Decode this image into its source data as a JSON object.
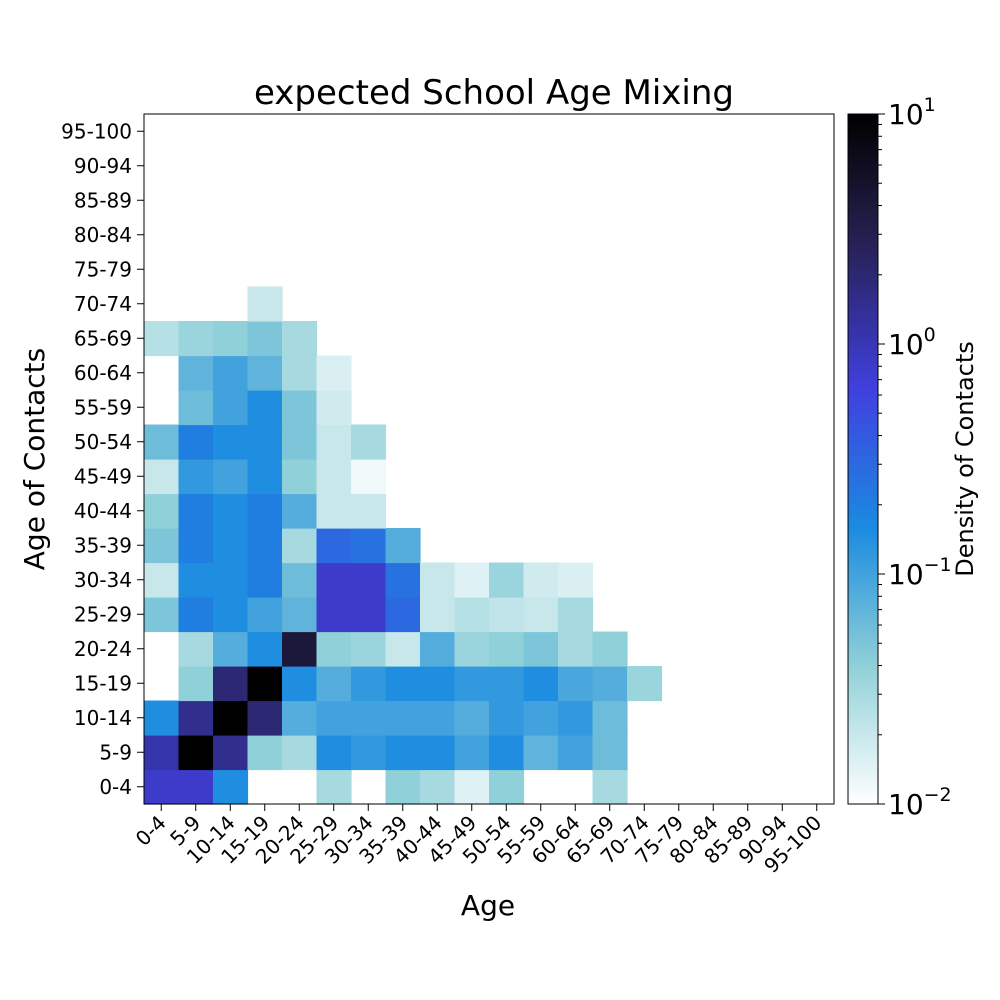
{
  "chart_data": {
    "type": "heatmap",
    "title": "expected School Age Mixing",
    "xlabel": "Age",
    "ylabel": "Age of Contacts",
    "categories": [
      "0-4",
      "5-9",
      "10-14",
      "15-19",
      "20-24",
      "25-29",
      "30-34",
      "35-39",
      "40-44",
      "45-49",
      "50-54",
      "55-59",
      "60-64",
      "65-69",
      "70-74",
      "75-79",
      "80-84",
      "85-89",
      "90-94",
      "95-100"
    ],
    "colorbar": {
      "label": "Density of Contacts",
      "scale": "log",
      "range": [
        0.01,
        10
      ],
      "ticks": [
        {
          "value": 10,
          "base": "10",
          "exp": "1"
        },
        {
          "value": 1,
          "base": "10",
          "exp": "0"
        },
        {
          "value": 0.1,
          "base": "10",
          "exp": "−1"
        },
        {
          "value": 0.01,
          "base": "10",
          "exp": "−2"
        }
      ],
      "colors": [
        "#ffffff",
        "#90d0d8",
        "#1a8be0",
        "#4040e0",
        "#262050",
        "#000000"
      ]
    },
    "values": [
      [
        0.8,
        0.8,
        0.15,
        0,
        0,
        0.03,
        0,
        0.04,
        0.03,
        0.015,
        0.04,
        0,
        0,
        0.03,
        0,
        0,
        0,
        0,
        0,
        0
      ],
      [
        1.1,
        10,
        1.5,
        0.04,
        0.03,
        0.15,
        0.12,
        0.15,
        0.15,
        0.1,
        0.15,
        0.07,
        0.1,
        0.06,
        0,
        0,
        0,
        0,
        0,
        0
      ],
      [
        0.15,
        1.5,
        10,
        2,
        0.08,
        0.1,
        0.1,
        0.1,
        0.1,
        0.08,
        0.12,
        0.1,
        0.12,
        0.06,
        0,
        0,
        0,
        0,
        0,
        0
      ],
      [
        0,
        0.04,
        2,
        10,
        0.15,
        0.08,
        0.12,
        0.15,
        0.15,
        0.12,
        0.12,
        0.15,
        0.09,
        0.08,
        0.035,
        0,
        0,
        0,
        0,
        0
      ],
      [
        0,
        0.03,
        0.08,
        0.15,
        4,
        0.04,
        0.035,
        0.02,
        0.08,
        0.035,
        0.04,
        0.05,
        0.03,
        0.04,
        0,
        0,
        0,
        0,
        0,
        0
      ],
      [
        0.05,
        0.2,
        0.15,
        0.1,
        0.07,
        0.8,
        0.8,
        0.3,
        0.02,
        0.025,
        0.022,
        0.02,
        0.03,
        0,
        0,
        0,
        0,
        0,
        0,
        0
      ],
      [
        0.02,
        0.15,
        0.15,
        0.2,
        0.06,
        0.8,
        0.8,
        0.25,
        0.02,
        0.015,
        0.035,
        0.018,
        0.016,
        0,
        0,
        0,
        0,
        0,
        0,
        0
      ],
      [
        0.05,
        0.2,
        0.15,
        0.2,
        0.03,
        0.3,
        0.25,
        0.08,
        0,
        0,
        0,
        0,
        0,
        0,
        0,
        0,
        0,
        0,
        0,
        0
      ],
      [
        0.04,
        0.2,
        0.15,
        0.2,
        0.08,
        0.02,
        0.02,
        0,
        0,
        0,
        0,
        0,
        0,
        0,
        0,
        0,
        0,
        0,
        0,
        0
      ],
      [
        0.02,
        0.12,
        0.1,
        0.15,
        0.04,
        0.02,
        0.012,
        0,
        0,
        0,
        0,
        0,
        0,
        0,
        0,
        0,
        0,
        0,
        0,
        0
      ],
      [
        0.06,
        0.2,
        0.15,
        0.15,
        0.05,
        0.02,
        0.03,
        0,
        0,
        0,
        0,
        0,
        0,
        0,
        0,
        0,
        0,
        0,
        0,
        0
      ],
      [
        0,
        0.06,
        0.1,
        0.15,
        0.05,
        0.018,
        0,
        0,
        0,
        0,
        0,
        0,
        0,
        0,
        0,
        0,
        0,
        0,
        0,
        0
      ],
      [
        0,
        0.07,
        0.1,
        0.07,
        0.03,
        0.016,
        0,
        0,
        0,
        0,
        0,
        0,
        0,
        0,
        0,
        0,
        0,
        0,
        0,
        0
      ],
      [
        0.025,
        0.035,
        0.04,
        0.05,
        0.03,
        0,
        0,
        0,
        0,
        0,
        0,
        0,
        0,
        0,
        0,
        0,
        0,
        0,
        0,
        0
      ],
      [
        0,
        0,
        0,
        0.02,
        0,
        0,
        0,
        0,
        0,
        0,
        0,
        0,
        0,
        0,
        0,
        0,
        0,
        0,
        0,
        0
      ],
      [
        0,
        0,
        0,
        0,
        0,
        0,
        0,
        0,
        0,
        0,
        0,
        0,
        0,
        0,
        0,
        0,
        0,
        0,
        0,
        0
      ],
      [
        0,
        0,
        0,
        0,
        0,
        0,
        0,
        0,
        0,
        0,
        0,
        0,
        0,
        0,
        0,
        0,
        0,
        0,
        0,
        0
      ],
      [
        0,
        0,
        0,
        0,
        0,
        0,
        0,
        0,
        0,
        0,
        0,
        0,
        0,
        0,
        0,
        0,
        0,
        0,
        0,
        0
      ],
      [
        0,
        0,
        0,
        0,
        0,
        0,
        0,
        0,
        0,
        0,
        0,
        0,
        0,
        0,
        0,
        0,
        0,
        0,
        0,
        0
      ],
      [
        0,
        0,
        0,
        0,
        0,
        0,
        0,
        0,
        0,
        0,
        0,
        0,
        0,
        0,
        0,
        0,
        0,
        0,
        0,
        0
      ]
    ]
  }
}
